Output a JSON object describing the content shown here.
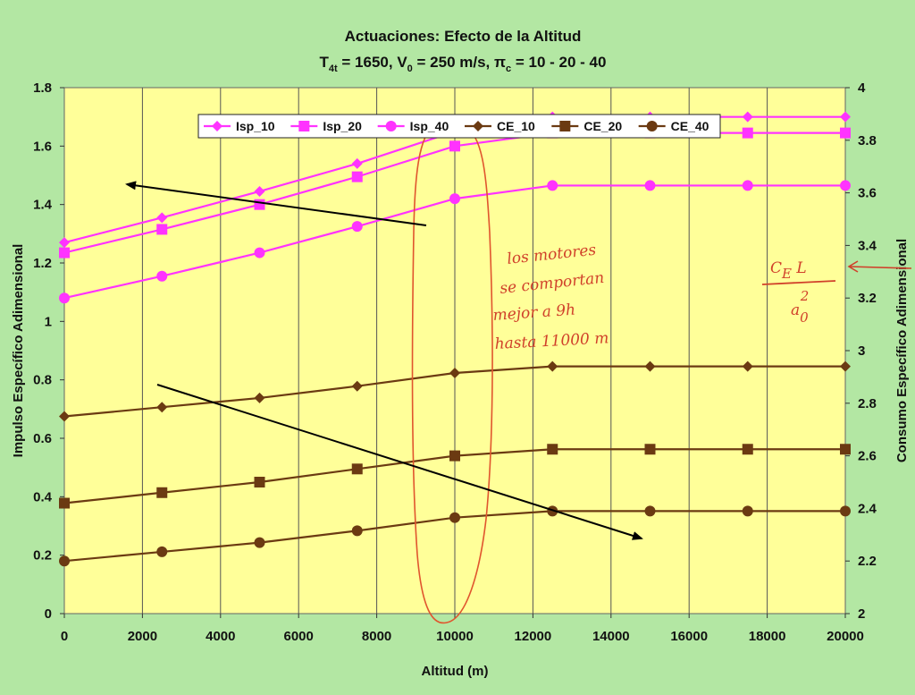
{
  "chart_data": {
    "type": "line",
    "title": "Actuaciones: Efecto de la Altitud",
    "subtitle": {
      "t_main": "T",
      "t_sub": "4t",
      "t_rest": " = 1650, V",
      "v_sub": "0",
      "v_rest": " = 250 m/s, π",
      "pi_sub": "c",
      "pi_rest": " = 10 - 20 - 40"
    },
    "xlabel": "Altitud (m)",
    "ylabel_left": "Impulso Específico Adimensional",
    "ylabel_right": "Consumo Específico Adimensional",
    "xlim": [
      0,
      20000
    ],
    "ylim_left": [
      0,
      1.8
    ],
    "ylim_right": [
      2,
      4
    ],
    "x_ticks": [
      "0",
      "2000",
      "4000",
      "6000",
      "8000",
      "10000",
      "12000",
      "14000",
      "16000",
      "18000",
      "20000"
    ],
    "y_left_ticks": [
      "0",
      "0.2",
      "0.4",
      "0.6",
      "0.8",
      "1",
      "1.2",
      "1.4",
      "1.6",
      "1.8"
    ],
    "y_right_ticks": [
      "2",
      "2.2",
      "2.4",
      "2.6",
      "2.8",
      "3",
      "3.2",
      "3.4",
      "3.6",
      "3.8",
      "4"
    ],
    "grid": "vertical",
    "legend_position": "top",
    "x": [
      0,
      2500,
      5000,
      7500,
      10000,
      12500,
      15000,
      17500,
      20000
    ],
    "series": [
      {
        "name": "Isp_10",
        "axis": "left",
        "color": "#ff33ff",
        "marker": "diamond",
        "values": [
          1.27,
          1.355,
          1.445,
          1.54,
          1.65,
          1.7,
          1.7,
          1.7,
          1.7
        ]
      },
      {
        "name": "Isp_20",
        "axis": "left",
        "color": "#ff33ff",
        "marker": "square",
        "values": [
          1.235,
          1.315,
          1.4,
          1.495,
          1.6,
          1.645,
          1.645,
          1.645,
          1.645
        ]
      },
      {
        "name": "Isp_40",
        "axis": "left",
        "color": "#ff33ff",
        "marker": "circle",
        "values": [
          1.08,
          1.155,
          1.235,
          1.325,
          1.42,
          1.465,
          1.465,
          1.465,
          1.465
        ]
      },
      {
        "name": "CE_10",
        "axis": "right",
        "color": "#6b3a12",
        "marker": "diamond",
        "values": [
          2.75,
          2.785,
          2.82,
          2.865,
          2.915,
          2.94,
          2.94,
          2.94,
          2.94
        ]
      },
      {
        "name": "CE_20",
        "axis": "right",
        "color": "#6b3a12",
        "marker": "square",
        "values": [
          2.42,
          2.46,
          2.5,
          2.55,
          2.6,
          2.625,
          2.625,
          2.625,
          2.625
        ]
      },
      {
        "name": "CE_40",
        "axis": "right",
        "color": "#6b3a12",
        "marker": "circle",
        "values": [
          2.2,
          2.235,
          2.27,
          2.315,
          2.365,
          2.39,
          2.39,
          2.39,
          2.39
        ]
      }
    ],
    "annotations": {
      "handwritten_note": [
        "los motores",
        "se comportan",
        "mejor a 9h",
        "hasta 11000 m"
      ],
      "formula": {
        "numerator": "C",
        "numerator_sub": "E",
        "numerator_rest": " L",
        "denominator": "a",
        "denominator_sub": "0",
        "denominator_sup": "2"
      }
    },
    "colors": {
      "background": "#b3e7a3",
      "plot_area": "#ffff99",
      "isp": "#ff33ff",
      "ce": "#6b3a12",
      "annotation": "#d0402a"
    }
  }
}
